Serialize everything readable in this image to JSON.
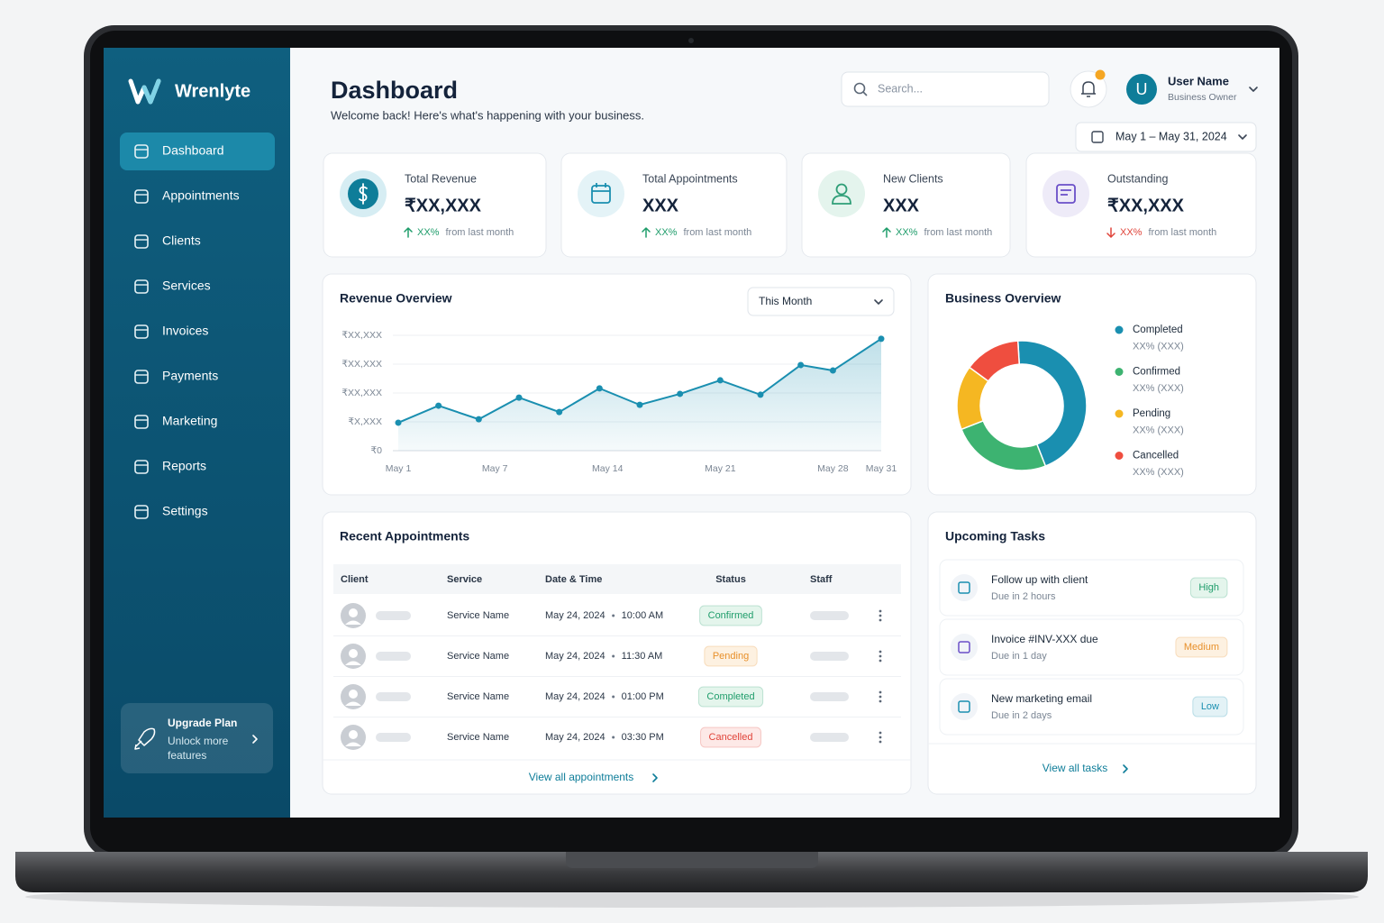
{
  "sidebar": {
    "brand": "Wrenlyte",
    "nav": [
      {
        "label": "Dashboard",
        "active": true
      },
      {
        "label": "Appointments",
        "active": false
      },
      {
        "label": "Clients",
        "active": false
      },
      {
        "label": "Services",
        "active": false
      },
      {
        "label": "Invoices",
        "active": false
      },
      {
        "label": "Payments",
        "active": false
      },
      {
        "label": "Marketing",
        "active": false
      },
      {
        "label": "Reports",
        "active": false
      },
      {
        "label": "Settings",
        "active": false
      }
    ],
    "upgrade": {
      "title": "Upgrade Plan",
      "text": "Unlock more features"
    }
  },
  "header": {
    "title": "Dashboard",
    "subtitle": "Welcome back! Here's what's happening with your business.",
    "search_placeholder": "Search...",
    "avatar": "U",
    "user_name": "User Name",
    "user_role": "Business Owner",
    "date_range": "May 1 – May 31, 2024"
  },
  "kpis": [
    {
      "label": "Total Revenue",
      "value": "₹XX,XXX",
      "change": "XX%",
      "note": "from last month",
      "trend": "up",
      "trend_color": "#1f9d6b",
      "icon_color": "#0e7d99",
      "icon_bg": "#d6edf3"
    },
    {
      "label": "Total Appointments",
      "value": "XXX",
      "change": "XX%",
      "note": "from last month",
      "trend": "up",
      "trend_color": "#1f9d6b",
      "icon_color": "#1a8fb0",
      "icon_bg": "#e4f3f7"
    },
    {
      "label": "New Clients",
      "value": "XXX",
      "change": "XX%",
      "note": "from last month",
      "trend": "up",
      "trend_color": "#1f9d6b",
      "icon_color": "#2e9e77",
      "icon_bg": "#e4f4ed"
    },
    {
      "label": "Outstanding",
      "value": "₹XX,XXX",
      "change": "XX%",
      "note": "from last month",
      "trend": "down",
      "trend_color": "#e0443a",
      "icon_color": "#6a4fc8",
      "icon_bg": "#eeebf8"
    }
  ],
  "revenue_chart": {
    "type": "line",
    "title": "Revenue Overview",
    "period": "This Month",
    "x": [
      1,
      3.5,
      6,
      8.5,
      11,
      13.5,
      16,
      18.5,
      21,
      23.5,
      26,
      28,
      31
    ],
    "values": [
      0.97,
      1.56,
      1.09,
      1.84,
      1.34,
      2.16,
      1.59,
      1.97,
      2.44,
      1.94,
      2.97,
      2.78,
      3.88
    ],
    "xlim": [
      1,
      31
    ],
    "xticks": [
      {
        "value": 1,
        "label": "May 1"
      },
      {
        "value": 7,
        "label": "May 7"
      },
      {
        "value": 14,
        "label": "May 14"
      },
      {
        "value": 21,
        "label": "May 21"
      },
      {
        "value": 28,
        "label": "May 28"
      },
      {
        "value": 31,
        "label": "May 31"
      }
    ],
    "ylim": [
      0,
      4
    ],
    "yticks": [
      {
        "value": 0,
        "label": "₹0"
      },
      {
        "value": 1,
        "label": "₹X,XXX"
      },
      {
        "value": 2,
        "label": "₹XX,XXX"
      },
      {
        "value": 3,
        "label": "₹XX,XXX"
      },
      {
        "value": 4,
        "label": "₹XX,XXX"
      }
    ],
    "color": "#1a8fb0",
    "grid": true
  },
  "business_chart": {
    "type": "donut",
    "title": "Business Overview",
    "categories": [
      "Completed",
      "Confirmed",
      "Pending",
      "Cancelled"
    ],
    "values": [
      45,
      25,
      16,
      14
    ],
    "colors": [
      "#1a8fb0",
      "#3db371",
      "#f5b722",
      "#ef4e3f"
    ],
    "details": [
      "XX%  (XXX)",
      "XX%  (XXX)",
      "XX%  (XXX)",
      "XX%  (XXX)"
    ]
  },
  "appointments": {
    "title": "Recent Appointments",
    "columns": [
      "Client",
      "Service",
      "Date & Time",
      "Status",
      "Staff"
    ],
    "rows": [
      {
        "service": "Service Name",
        "date": "May 24, 2024",
        "time": "10:00 AM",
        "status": "Confirmed",
        "status_color": "#1f9d6b",
        "status_bg": "#e4f5ec"
      },
      {
        "service": "Service Name",
        "date": "May 24, 2024",
        "time": "11:30 AM",
        "status": "Pending",
        "status_color": "#e8902a",
        "status_bg": "#fdf1e1"
      },
      {
        "service": "Service Name",
        "date": "May 24, 2024",
        "time": "01:00 PM",
        "status": "Completed",
        "status_color": "#1f9d6b",
        "status_bg": "#e4f5ec"
      },
      {
        "service": "Service Name",
        "date": "May 24, 2024",
        "time": "03:30 PM",
        "status": "Cancelled",
        "status_color": "#e0443a",
        "status_bg": "#fde9e7"
      }
    ],
    "link": "View all appointments"
  },
  "tasks": {
    "title": "Upcoming Tasks",
    "items": [
      {
        "title": "Follow up with client",
        "due": "Due in 2 hours",
        "priority": "High",
        "priority_color": "#1f9d6b",
        "priority_bg": "#e4f5ec",
        "icon_color": "#1a8fb0"
      },
      {
        "title": "Invoice #INV-XXX due",
        "due": "Due in 1 day",
        "priority": "Medium",
        "priority_color": "#e8902a",
        "priority_bg": "#fdf1e1",
        "icon_color": "#6a4fc8"
      },
      {
        "title": "New marketing email",
        "due": "Due in 2 days",
        "priority": "Low",
        "priority_color": "#1a8fb0",
        "priority_bg": "#e3f2f6",
        "icon_color": "#1a8fb0"
      }
    ],
    "link": "View all tasks"
  }
}
